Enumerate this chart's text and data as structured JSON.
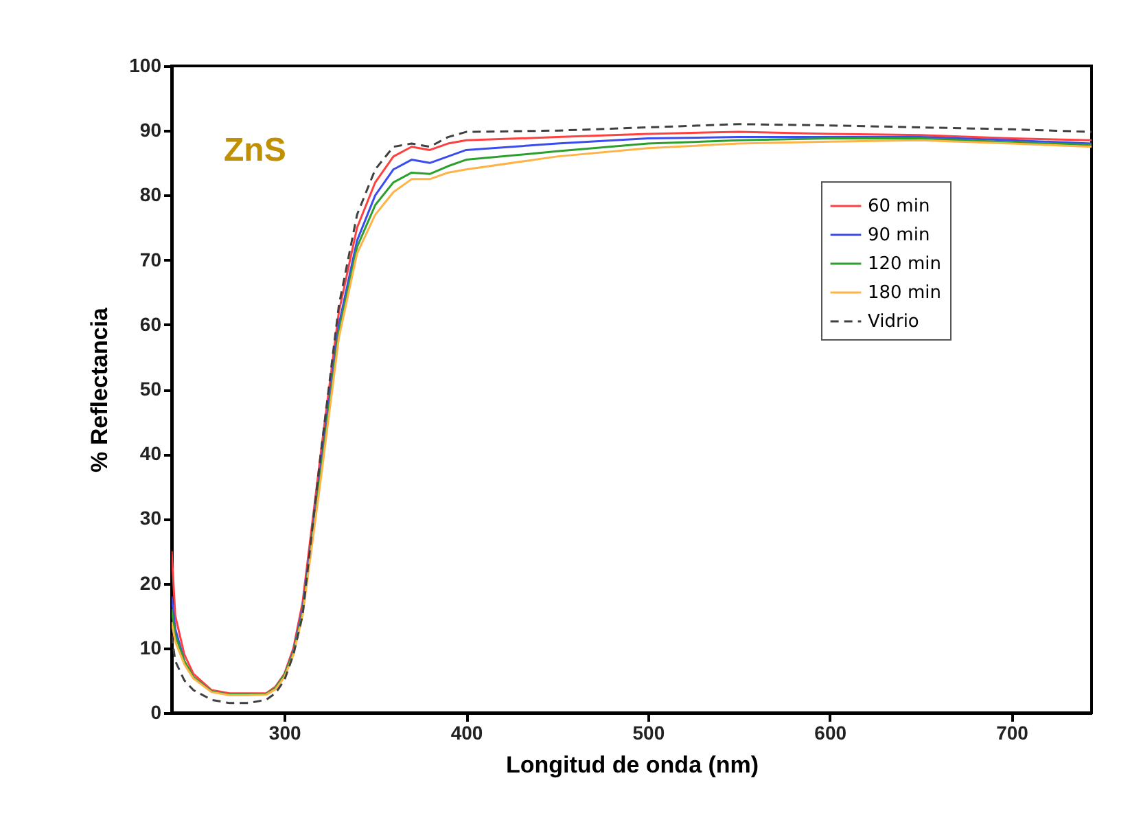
{
  "chart_data": {
    "type": "line",
    "xlabel": "Longitud de onda (nm)",
    "ylabel": "% Reflectancia",
    "annotations": [
      "ZnS"
    ],
    "x": [
      238,
      240,
      245,
      250,
      260,
      270,
      280,
      290,
      295,
      300,
      305,
      310,
      320,
      330,
      340,
      350,
      360,
      370,
      380,
      390,
      400,
      450,
      500,
      550,
      600,
      650,
      700,
      744
    ],
    "series": [
      {
        "name": "60 min",
        "color": "#ff4040",
        "values": [
          25,
          15,
          9,
          6,
          3.5,
          3,
          3,
          3,
          4,
          6,
          10,
          17,
          40,
          62,
          75,
          82,
          86,
          87.5,
          87,
          88,
          88.5,
          89,
          89.5,
          89.8,
          89.5,
          89.3,
          88.8,
          88.5
        ]
      },
      {
        "name": "90 min",
        "color": "#3a4cf0",
        "values": [
          18,
          13,
          8,
          5.5,
          3.3,
          2.8,
          2.8,
          2.9,
          3.8,
          5.8,
          9.5,
          16,
          38,
          60,
          73,
          80,
          84,
          85.5,
          85,
          86,
          87,
          88,
          88.8,
          89,
          89,
          89,
          88.5,
          88
        ]
      },
      {
        "name": "120 min",
        "color": "#2ca02c",
        "values": [
          16,
          12,
          8,
          5.5,
          3.3,
          2.8,
          2.8,
          2.9,
          3.8,
          5.8,
          9.3,
          15.5,
          37,
          59,
          72,
          78.5,
          82,
          83.5,
          83.3,
          84.5,
          85.5,
          86.8,
          88,
          88.5,
          88.8,
          88.8,
          88.2,
          87.8
        ]
      },
      {
        "name": "180 min",
        "color": "#ffb347",
        "values": [
          14,
          11,
          7.5,
          5.3,
          3.2,
          2.7,
          2.7,
          2.8,
          3.6,
          5.5,
          9,
          15,
          36,
          58,
          71,
          77,
          80.5,
          82.5,
          82.5,
          83.5,
          84,
          86,
          87.3,
          88,
          88.3,
          88.5,
          88,
          87.5
        ]
      },
      {
        "name": "Vidrio",
        "color": "#404040",
        "line_style": "dashed",
        "values": [
          12,
          8,
          5,
          3.5,
          2,
          1.5,
          1.5,
          2,
          3,
          5,
          9,
          15,
          40,
          63,
          77,
          84,
          87.5,
          88,
          87.5,
          89,
          89.8,
          90,
          90.5,
          91,
          90.8,
          90.5,
          90.2,
          89.8
        ]
      }
    ],
    "xlim": [
      238,
      744
    ],
    "xticks": [
      300,
      400,
      500,
      600,
      700
    ],
    "ylim": [
      0,
      100
    ],
    "yticks": [
      0,
      10,
      20,
      30,
      40,
      50,
      60,
      70,
      80,
      90,
      100
    ],
    "grid": false,
    "legend": "top right",
    "line_style": "solid"
  }
}
